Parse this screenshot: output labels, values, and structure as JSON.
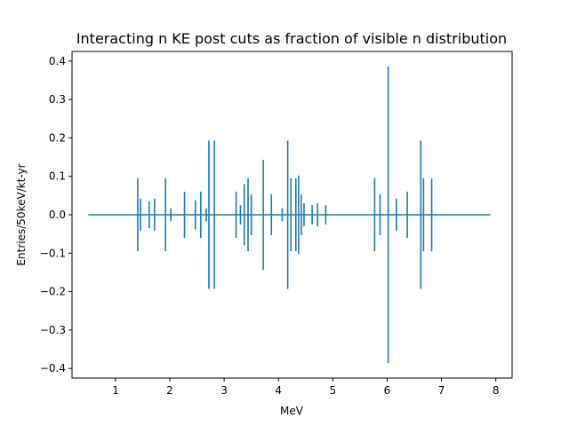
{
  "chart_data": {
    "type": "errorbar",
    "title": "Interacting n KE post cuts as fraction of visible n distribution",
    "xlabel": "MeV",
    "ylabel": "Entries/50keV/kt-yr",
    "xlim": [
      0.2,
      8.3
    ],
    "ylim": [
      -0.425,
      0.425
    ],
    "xticks": [
      1,
      2,
      3,
      4,
      5,
      6,
      7,
      8
    ],
    "yticks": [
      -0.4,
      -0.3,
      -0.2,
      -0.1,
      0.0,
      0.1,
      0.2,
      0.3,
      0.4
    ],
    "ytick_labels": [
      "−0.4",
      "−0.3",
      "−0.2",
      "−0.1",
      "0.0",
      "0.1",
      "0.2",
      "0.3",
      "0.4"
    ],
    "line": {
      "x_start": 0.5,
      "x_end": 7.9,
      "y": 0.0
    },
    "color": "#1f77b4",
    "grid": false,
    "points": [
      {
        "x": 1.41,
        "err": 0.095
      },
      {
        "x": 1.46,
        "err": 0.042
      },
      {
        "x": 1.62,
        "err": 0.035
      },
      {
        "x": 1.72,
        "err": 0.042
      },
      {
        "x": 1.92,
        "err": 0.095
      },
      {
        "x": 2.02,
        "err": 0.017
      },
      {
        "x": 2.27,
        "err": 0.06
      },
      {
        "x": 2.47,
        "err": 0.038
      },
      {
        "x": 2.57,
        "err": 0.06
      },
      {
        "x": 2.67,
        "err": 0.017
      },
      {
        "x": 2.72,
        "err": 0.193
      },
      {
        "x": 2.82,
        "err": 0.193
      },
      {
        "x": 3.22,
        "err": 0.06
      },
      {
        "x": 3.3,
        "err": 0.025
      },
      {
        "x": 3.37,
        "err": 0.08
      },
      {
        "x": 3.44,
        "err": 0.095
      },
      {
        "x": 3.5,
        "err": 0.053
      },
      {
        "x": 3.72,
        "err": 0.143
      },
      {
        "x": 3.87,
        "err": 0.053
      },
      {
        "x": 4.07,
        "err": 0.017
      },
      {
        "x": 4.17,
        "err": 0.193
      },
      {
        "x": 4.23,
        "err": 0.095
      },
      {
        "x": 4.32,
        "err": 0.095
      },
      {
        "x": 4.37,
        "err": 0.102
      },
      {
        "x": 4.42,
        "err": 0.053
      },
      {
        "x": 4.47,
        "err": 0.03
      },
      {
        "x": 4.62,
        "err": 0.025
      },
      {
        "x": 4.72,
        "err": 0.03
      },
      {
        "x": 4.87,
        "err": 0.025
      },
      {
        "x": 5.77,
        "err": 0.095
      },
      {
        "x": 5.87,
        "err": 0.053
      },
      {
        "x": 6.02,
        "err": 0.386
      },
      {
        "x": 6.17,
        "err": 0.042
      },
      {
        "x": 6.37,
        "err": 0.06
      },
      {
        "x": 6.62,
        "err": 0.193
      },
      {
        "x": 6.67,
        "err": 0.095
      },
      {
        "x": 6.82,
        "err": 0.095
      }
    ]
  }
}
